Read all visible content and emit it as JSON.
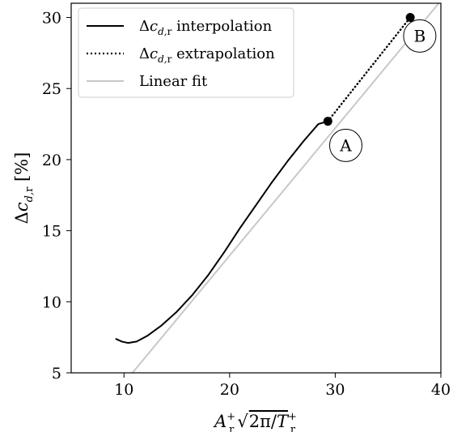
{
  "chart_data": {
    "type": "line",
    "xlabel": "A⁺ᵣ √(2π/T⁺ᵣ)",
    "ylabel": "Δc_{d,r} [%]",
    "xlim": [
      5,
      40
    ],
    "ylim": [
      5,
      31
    ],
    "xticks": [
      10,
      20,
      30,
      40
    ],
    "yticks": [
      5,
      10,
      15,
      20,
      25,
      30
    ],
    "grid": false,
    "legend_position": "top-left",
    "series": [
      {
        "name": "Δc_{d,r} interpolation",
        "style": "solid",
        "color": "#000000",
        "x": [
          9.2,
          9.8,
          10.4,
          11.2,
          12.2,
          13.5,
          15.0,
          16.5,
          18.0,
          19.5,
          21.0,
          22.5,
          24.0,
          25.5,
          27.0,
          28.4,
          29.3
        ],
        "y": [
          7.4,
          7.2,
          7.1,
          7.2,
          7.6,
          8.3,
          9.3,
          10.5,
          11.9,
          13.5,
          15.2,
          16.8,
          18.4,
          19.9,
          21.3,
          22.5,
          22.7
        ]
      },
      {
        "name": "Δc_{d,r} extrapolation",
        "style": "dotted",
        "color": "#000000",
        "x": [
          29.3,
          37.1
        ],
        "y": [
          22.7,
          30.0
        ]
      },
      {
        "name": "Linear fit",
        "style": "solid",
        "color": "#c8c8c8",
        "x": [
          10.8,
          39.8
        ],
        "y": [
          5.0,
          31.0
        ]
      }
    ],
    "points": [
      {
        "label": "A",
        "x": 29.3,
        "y": 22.7
      },
      {
        "label": "B",
        "x": 37.1,
        "y": 30.0
      }
    ],
    "annotations": [
      {
        "text": "A",
        "x": 31.0,
        "y": 21.0
      },
      {
        "text": "B",
        "x": 38.0,
        "y": 28.7
      }
    ]
  }
}
